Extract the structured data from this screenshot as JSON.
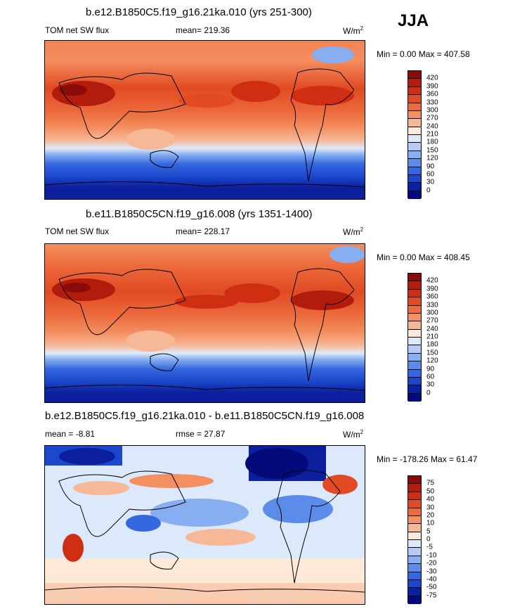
{
  "season": "JJA",
  "panels": [
    {
      "title": "b.e12.B1850C5.f19_g16.21ka.010 (yrs 251-300)",
      "left_label": "TOM net SW flux",
      "center_label": "mean= 219.36",
      "units_base": "W/m",
      "units_sup": "2",
      "minmax": "Min =   0.00 Max = 407.58",
      "legend_labels": [
        "420",
        "390",
        "360",
        "330",
        "300",
        "270",
        "240",
        "210",
        "180",
        "150",
        "120",
        "90",
        "60",
        "30",
        "0"
      ],
      "legend_colors": [
        "#8b0a0a",
        "#b21c0d",
        "#d02e12",
        "#e14a22",
        "#ec6a3c",
        "#f38f60",
        "#f7b898",
        "#fde9d8",
        "#dce9fb",
        "#b3cdf6",
        "#86aef0",
        "#5b8cea",
        "#3468e0",
        "#1c46cc",
        "#0c1f9c",
        "#050a7a"
      ]
    },
    {
      "title": "b.e11.B1850C5CN.f19_g16.008 (yrs 1351-1400)",
      "left_label": "TOM net SW flux",
      "center_label": "mean= 228.17",
      "units_base": "W/m",
      "units_sup": "2",
      "minmax": "Min =   0.00 Max = 408.45",
      "legend_labels": [
        "420",
        "390",
        "360",
        "330",
        "300",
        "270",
        "240",
        "210",
        "180",
        "150",
        "120",
        "90",
        "60",
        "30",
        "0"
      ],
      "legend_colors": [
        "#8b0a0a",
        "#b21c0d",
        "#d02e12",
        "#e14a22",
        "#ec6a3c",
        "#f38f60",
        "#f7b898",
        "#fde9d8",
        "#dce9fb",
        "#b3cdf6",
        "#86aef0",
        "#5b8cea",
        "#3468e0",
        "#1c46cc",
        "#0c1f9c",
        "#050a7a"
      ]
    },
    {
      "title": "b.e12.B1850C5.f19_g16.21ka.010 - b.e11.B1850C5CN.f19_g16.008",
      "left_label": "mean =  -8.81",
      "center_label": "rmse =  27.87",
      "units_base": "W/m",
      "units_sup": "2",
      "minmax": "Min = -178.26 Max =  61.47",
      "legend_labels": [
        "75",
        "50",
        "40",
        "30",
        "20",
        "10",
        "5",
        "0",
        "-5",
        "-10",
        "-20",
        "-30",
        "-40",
        "-50",
        "-75"
      ],
      "legend_colors": [
        "#8b0a0a",
        "#b21c0d",
        "#d02e12",
        "#e14a22",
        "#ec6a3c",
        "#f38f60",
        "#f7b898",
        "#fde9d8",
        "#dce9fb",
        "#b3cdf6",
        "#86aef0",
        "#5b8cea",
        "#3468e0",
        "#1c46cc",
        "#0c1f9c",
        "#050a7a"
      ]
    }
  ]
}
